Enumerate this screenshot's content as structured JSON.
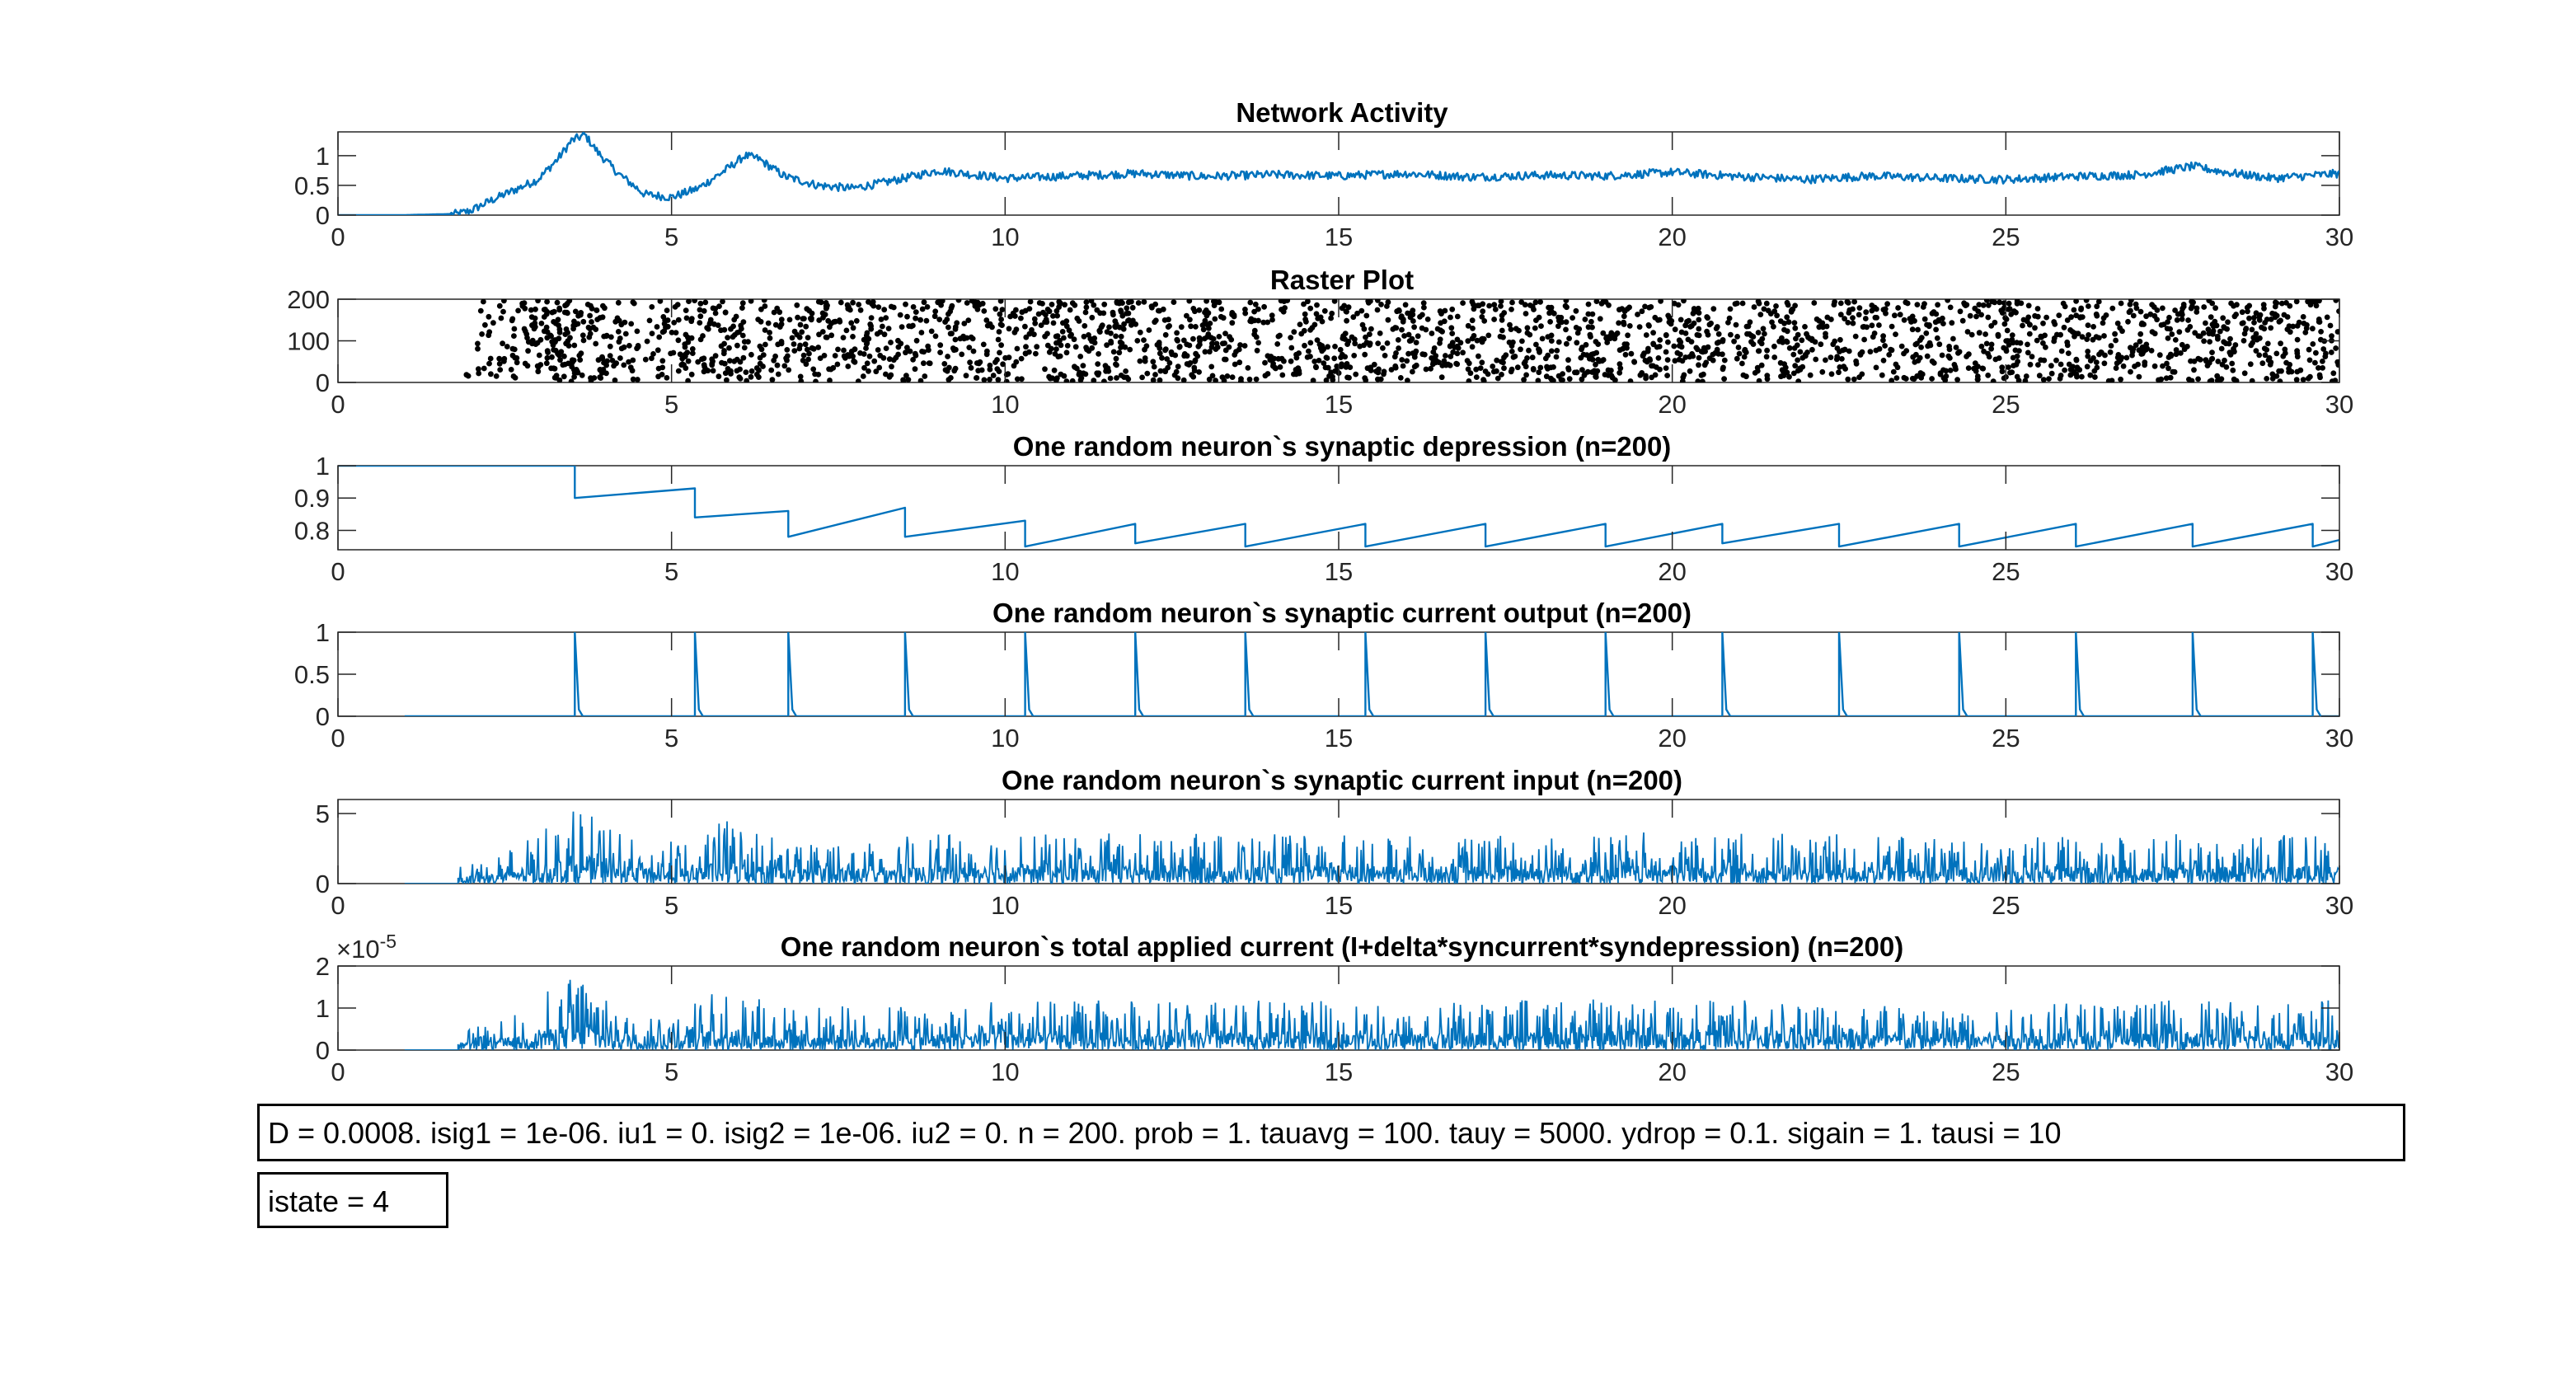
{
  "figure": {
    "x_ticks": [
      0,
      5,
      10,
      15,
      20,
      25,
      30
    ],
    "x_range": [
      0,
      30
    ],
    "line_color": "#0072BD",
    "dot_color": "#000000"
  },
  "chart_data": [
    {
      "type": "line",
      "title": "Network Activity",
      "xlim": [
        0,
        30
      ],
      "ylim": [
        0,
        1.4
      ],
      "y_ticks": [
        0,
        0.5,
        1
      ],
      "y_tick_labels": [
        "0",
        "0.5",
        "1"
      ],
      "series": [
        {
          "x": [
            0,
            1,
            1.8,
            2,
            2.3,
            2.6,
            3,
            3.3,
            3.5,
            3.7,
            3.9,
            4.2,
            4.6,
            5,
            5.4,
            5.8,
            6.1,
            6.3,
            6.7,
            7.2,
            7.7,
            8.2,
            9,
            10,
            11,
            12,
            13,
            14,
            15,
            16,
            17,
            18,
            19,
            20,
            21,
            22,
            23,
            24,
            25,
            26,
            27,
            27.8,
            28.3,
            29,
            30
          ],
          "y": [
            0,
            0,
            0.02,
            0.08,
            0.25,
            0.4,
            0.6,
            0.95,
            1.25,
            1.35,
            1.05,
            0.7,
            0.35,
            0.3,
            0.45,
            0.75,
            1.0,
            0.95,
            0.65,
            0.5,
            0.45,
            0.55,
            0.75,
            0.62,
            0.66,
            0.7,
            0.65,
            0.68,
            0.66,
            0.7,
            0.64,
            0.67,
            0.66,
            0.72,
            0.65,
            0.6,
            0.66,
            0.62,
            0.6,
            0.65,
            0.68,
            0.82,
            0.72,
            0.62,
            0.7
          ]
        }
      ]
    },
    {
      "type": "scatter",
      "title": "Raster Plot",
      "xlim": [
        0,
        30
      ],
      "ylim": [
        0,
        200
      ],
      "y_ticks": [
        0,
        100,
        200
      ],
      "y_tick_labels": [
        "0",
        "100",
        "200"
      ],
      "point_count": 2600,
      "onset": 1.8,
      "density_profile": {
        "x": [
          1.8,
          2.2,
          2.8,
          3.3,
          3.7,
          4.2,
          4.7,
          5.2,
          5.8,
          6.3,
          6.8,
          7.5,
          9,
          12,
          16,
          20,
          24,
          28,
          30
        ],
        "w": [
          0.05,
          0.3,
          0.6,
          1.0,
          1.0,
          0.6,
          0.4,
          0.55,
          0.85,
          0.75,
          0.55,
          0.6,
          0.65,
          0.68,
          0.66,
          0.7,
          0.64,
          0.68,
          0.68
        ]
      }
    },
    {
      "type": "line",
      "title": "One random neuron`s synaptic depression (n=200)",
      "xlim": [
        0,
        30
      ],
      "ylim": [
        0.74,
        1
      ],
      "y_ticks": [
        0.8,
        0.9,
        1
      ],
      "y_tick_labels": [
        "0.8",
        "0.9",
        "1"
      ],
      "series": [
        {
          "x": [
            0,
            1,
            3.55,
            3.55,
            5.35,
            5.35,
            6.75,
            6.75,
            8.5,
            8.5,
            10.3,
            10.3,
            11.95,
            11.95,
            13.6,
            13.6,
            15.4,
            15.4,
            17.2,
            17.2,
            19.0,
            19.0,
            20.75,
            20.75,
            22.5,
            22.5,
            24.3,
            24.3,
            26.05,
            26.05,
            27.8,
            27.8,
            29.6,
            29.6,
            30
          ],
          "y": [
            1,
            1,
            1,
            0.9,
            0.93,
            0.84,
            0.86,
            0.78,
            0.87,
            0.78,
            0.83,
            0.75,
            0.82,
            0.76,
            0.82,
            0.75,
            0.82,
            0.75,
            0.82,
            0.75,
            0.82,
            0.75,
            0.82,
            0.76,
            0.82,
            0.75,
            0.82,
            0.75,
            0.82,
            0.75,
            0.82,
            0.75,
            0.82,
            0.75,
            0.77
          ]
        }
      ]
    },
    {
      "type": "line",
      "title": "One random neuron`s synaptic current output (n=200)",
      "xlim": [
        0,
        30
      ],
      "ylim": [
        0,
        1
      ],
      "y_ticks": [
        0,
        0.5,
        1
      ],
      "y_tick_labels": [
        "0",
        "0.5",
        "1"
      ],
      "baseline_start": 1,
      "spike_times": [
        3.55,
        5.35,
        6.75,
        8.5,
        10.3,
        11.95,
        13.6,
        15.4,
        17.2,
        19.0,
        20.75,
        22.5,
        24.3,
        26.05,
        27.8,
        29.6
      ],
      "spike_height": 1
    },
    {
      "type": "line",
      "title": "One random neuron`s synaptic current input (n=200)",
      "xlim": [
        0,
        30
      ],
      "ylim": [
        0,
        6
      ],
      "y_ticks": [
        0,
        5
      ],
      "y_tick_labels": [
        "0",
        "5"
      ],
      "onset": 1.8,
      "envelope": {
        "x": [
          1.8,
          2.2,
          2.8,
          3.3,
          3.7,
          4.2,
          4.7,
          5.2,
          5.8,
          6.3,
          6.8,
          7.5,
          9,
          12,
          16,
          20,
          24,
          28,
          30
        ],
        "y": [
          1.2,
          1.8,
          3.0,
          4.6,
          5.8,
          3.8,
          2.8,
          3.2,
          4.6,
          4.0,
          3.0,
          3.2,
          3.5,
          3.6,
          3.5,
          3.7,
          3.4,
          3.6,
          3.6
        ]
      }
    },
    {
      "type": "line",
      "title": "One random neuron`s total applied current (I+delta*syncurrent*syndepression) (n=200)",
      "xlim": [
        0,
        30
      ],
      "ylim": [
        0,
        2
      ],
      "y_ticks": [
        0,
        1,
        2
      ],
      "y_tick_labels": [
        "0",
        "1",
        "2"
      ],
      "y_exponent": "×10",
      "y_exponent_power": "-5",
      "onset": 1.8,
      "envelope": {
        "x": [
          1.8,
          2.2,
          2.8,
          3.3,
          3.7,
          4.2,
          4.7,
          5.2,
          5.8,
          6.3,
          6.8,
          7.5,
          9,
          12,
          16,
          20,
          24,
          28,
          30
        ],
        "y": [
          0.45,
          0.6,
          1.0,
          1.6,
          1.95,
          1.3,
          0.95,
          1.05,
          1.5,
          1.3,
          1.0,
          1.05,
          1.15,
          1.2,
          1.15,
          1.25,
          1.15,
          1.2,
          1.2
        ]
      }
    }
  ],
  "annotations": {
    "params": "D = 0.0008. isig1 = 1e-06. iu1 = 0. isig2 = 1e-06. iu2 = 0. n = 200. prob = 1. tauavg = 100. tauy = 5000. ydrop = 0.1. sigain = 1. tausi = 10",
    "istate": "istate = 4"
  }
}
